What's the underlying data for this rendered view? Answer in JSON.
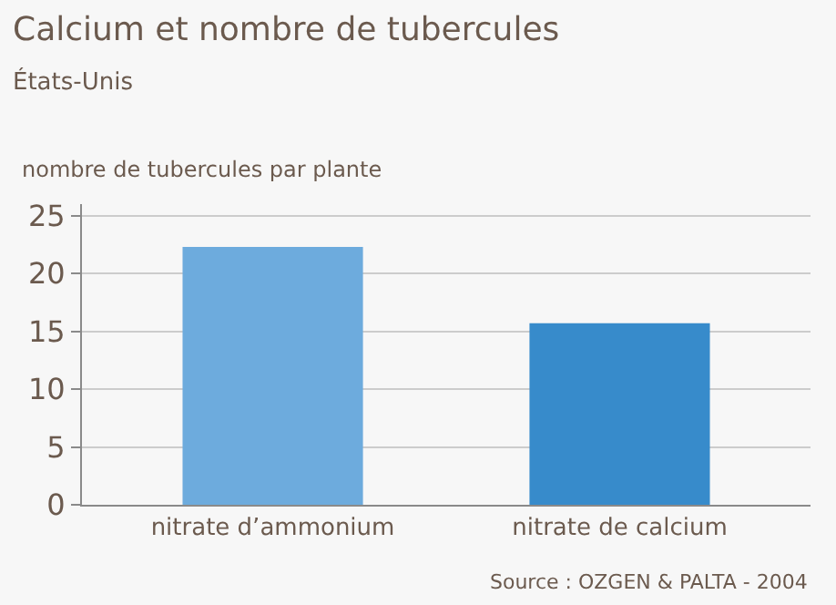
{
  "chart_data": {
    "type": "bar",
    "title": "Calcium et nombre de tubercules",
    "subtitle": "États-Unis",
    "ylabel": "nombre de tubercules par plante",
    "categories": [
      "nitrate d’ammonium",
      "nitrate de calcium"
    ],
    "values": [
      22.3,
      15.7
    ],
    "colors": [
      "#6dabdd",
      "#378bcb"
    ],
    "ylim": [
      0,
      26
    ],
    "yticks": [
      0,
      5,
      10,
      15,
      20,
      25
    ],
    "grid": "y",
    "legend": false,
    "annotations": [
      "Source : OZGEN & PALTA - 2004"
    ]
  }
}
